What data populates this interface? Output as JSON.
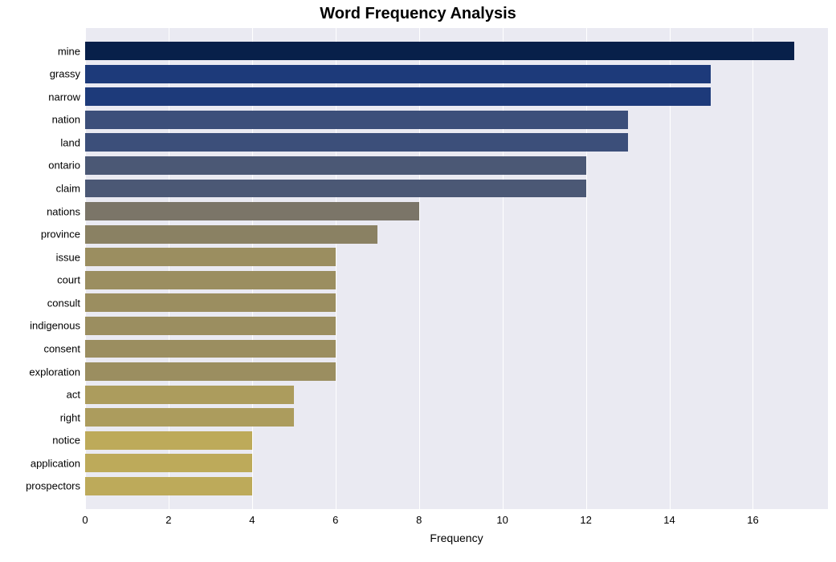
{
  "chart": {
    "type": "bar-horizontal",
    "title": "Word Frequency Analysis",
    "title_fontsize": 20,
    "title_fontweight": "bold",
    "xaxis_label": "Frequency",
    "xaxis_label_fontsize": 14,
    "tick_fontsize": 13,
    "background_color": "#ffffff",
    "plot_background_color": "#eaeaf2",
    "grid_color": "#ffffff",
    "xlim": [
      0,
      17.8
    ],
    "xticks": [
      0,
      2,
      4,
      6,
      8,
      10,
      12,
      14,
      16
    ],
    "bar_height_ratio": 0.8,
    "row_count": 20,
    "padding_top_rows": 0.5,
    "padding_bottom_rows": 0.5,
    "data": [
      {
        "label": "mine",
        "value": 17,
        "color": "#08204a"
      },
      {
        "label": "grassy",
        "value": 15,
        "color": "#1d3a7a"
      },
      {
        "label": "narrow",
        "value": 15,
        "color": "#1d3a7a"
      },
      {
        "label": "nation",
        "value": 13,
        "color": "#3c4f7a"
      },
      {
        "label": "land",
        "value": 13,
        "color": "#3c4f7a"
      },
      {
        "label": "ontario",
        "value": 12,
        "color": "#4b5875"
      },
      {
        "label": "claim",
        "value": 12,
        "color": "#4b5875"
      },
      {
        "label": "nations",
        "value": 8,
        "color": "#7b7568"
      },
      {
        "label": "province",
        "value": 7,
        "color": "#8a8163"
      },
      {
        "label": "issue",
        "value": 6,
        "color": "#9b8e60"
      },
      {
        "label": "court",
        "value": 6,
        "color": "#9b8e60"
      },
      {
        "label": "consult",
        "value": 6,
        "color": "#9b8e60"
      },
      {
        "label": "indigenous",
        "value": 6,
        "color": "#9b8e60"
      },
      {
        "label": "consent",
        "value": 6,
        "color": "#9b8e60"
      },
      {
        "label": "exploration",
        "value": 6,
        "color": "#9b8e60"
      },
      {
        "label": "act",
        "value": 5,
        "color": "#ac9c5d"
      },
      {
        "label": "right",
        "value": 5,
        "color": "#ac9c5d"
      },
      {
        "label": "notice",
        "value": 4,
        "color": "#bdaa5a"
      },
      {
        "label": "application",
        "value": 4,
        "color": "#bdaa5a"
      },
      {
        "label": "prospectors",
        "value": 4,
        "color": "#bdaa5a"
      }
    ]
  }
}
